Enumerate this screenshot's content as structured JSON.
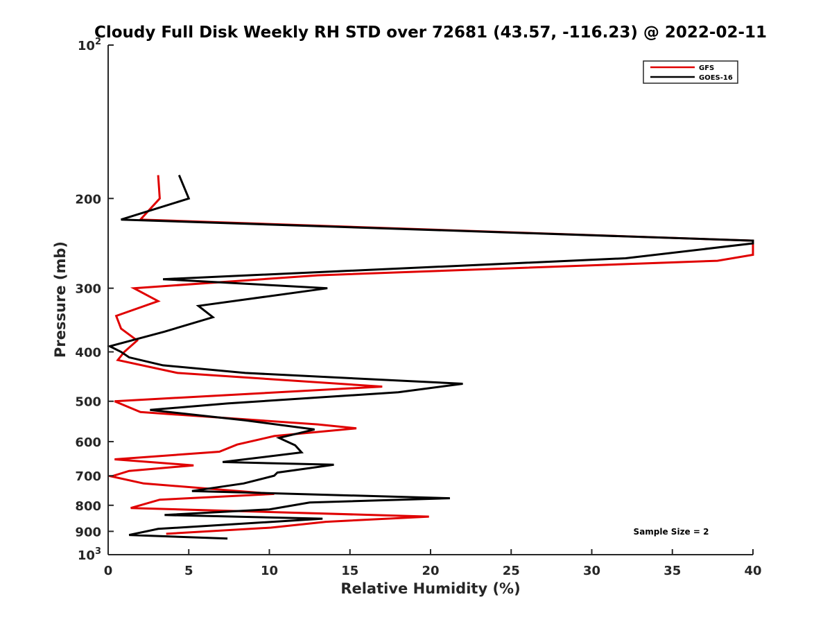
{
  "chart_data": {
    "type": "line",
    "title": "Cloudy Full Disk Weekly RH STD over 72681 (43.57, -116.23) @ 2022-02-11",
    "xlabel": "Relative Humidity (%)",
    "ylabel": "Pressure (mb)",
    "xlim": [
      0,
      40
    ],
    "ylim": [
      100,
      1000
    ],
    "y_scale": "log",
    "y_reversed": true,
    "grid": false,
    "legend_position": "top-right",
    "x_ticks": [
      "0",
      "5",
      "10",
      "15",
      "20",
      "25",
      "30",
      "35",
      "40"
    ],
    "y_ticks": [
      {
        "value": 100,
        "label": "10",
        "sup": "2"
      },
      {
        "value": 200,
        "label": "200",
        "sup": ""
      },
      {
        "value": 300,
        "label": "300",
        "sup": ""
      },
      {
        "value": 400,
        "label": "400",
        "sup": ""
      },
      {
        "value": 500,
        "label": "500",
        "sup": ""
      },
      {
        "value": 600,
        "label": "600",
        "sup": ""
      },
      {
        "value": 700,
        "label": "700",
        "sup": ""
      },
      {
        "value": 800,
        "label": "800",
        "sup": ""
      },
      {
        "value": 900,
        "label": "900",
        "sup": ""
      },
      {
        "value": 1000,
        "label": "10",
        "sup": "3"
      }
    ],
    "series": [
      {
        "name": "GFS",
        "color": "#e00000",
        "points": [
          [
            3.1,
            180
          ],
          [
            3.2,
            200
          ],
          [
            2.0,
            220
          ],
          [
            40,
            242
          ],
          [
            40,
            258
          ],
          [
            37.8,
            265
          ],
          [
            13,
            283
          ],
          [
            1.6,
            300
          ],
          [
            3.1,
            318
          ],
          [
            0.5,
            340
          ],
          [
            0.8,
            360
          ],
          [
            1.8,
            380
          ],
          [
            1.0,
            400
          ],
          [
            0.6,
            415
          ],
          [
            4.3,
            440
          ],
          [
            17,
            468
          ],
          [
            0.4,
            500
          ],
          [
            2.0,
            525
          ],
          [
            13,
            555
          ],
          [
            15.4,
            565
          ],
          [
            10.3,
            585
          ],
          [
            8.0,
            608
          ],
          [
            6.9,
            628
          ],
          [
            0.4,
            650
          ],
          [
            5.3,
            668
          ],
          [
            1.3,
            685
          ],
          [
            0.2,
            702
          ],
          [
            2.2,
            725
          ],
          [
            10.3,
            760
          ],
          [
            3.2,
            780
          ],
          [
            1.4,
            810
          ],
          [
            19.9,
            842
          ],
          [
            13.5,
            862
          ],
          [
            10.1,
            885
          ],
          [
            3.6,
            910
          ]
        ]
      },
      {
        "name": "GOES-16",
        "color": "#000000",
        "points": [
          [
            4.4,
            180
          ],
          [
            5.0,
            200
          ],
          [
            0.8,
            220
          ],
          [
            40,
            242
          ],
          [
            40,
            245
          ],
          [
            32.1,
            262
          ],
          [
            3.4,
            288
          ],
          [
            13.6,
            300
          ],
          [
            5.6,
            325
          ],
          [
            6.5,
            342
          ],
          [
            3.5,
            365
          ],
          [
            0.1,
            390
          ],
          [
            0.8,
            400
          ],
          [
            1.3,
            410
          ],
          [
            3.4,
            425
          ],
          [
            8.5,
            440
          ],
          [
            22,
            462
          ],
          [
            18,
            480
          ],
          [
            7.4,
            505
          ],
          [
            2.6,
            520
          ],
          [
            8.5,
            545
          ],
          [
            12.8,
            568
          ],
          [
            10.6,
            590
          ],
          [
            11.6,
            610
          ],
          [
            12.0,
            630
          ],
          [
            7.1,
            658
          ],
          [
            14.0,
            666
          ],
          [
            10.5,
            690
          ],
          [
            10.3,
            700
          ],
          [
            8.4,
            725
          ],
          [
            5.2,
            750
          ],
          [
            21.2,
            775
          ],
          [
            12.5,
            790
          ],
          [
            10.0,
            815
          ],
          [
            3.5,
            836
          ],
          [
            13.3,
            850
          ],
          [
            3.1,
            890
          ],
          [
            1.3,
            915
          ],
          [
            7.4,
            930
          ]
        ]
      }
    ],
    "annotation": "Sample Size = 2"
  }
}
